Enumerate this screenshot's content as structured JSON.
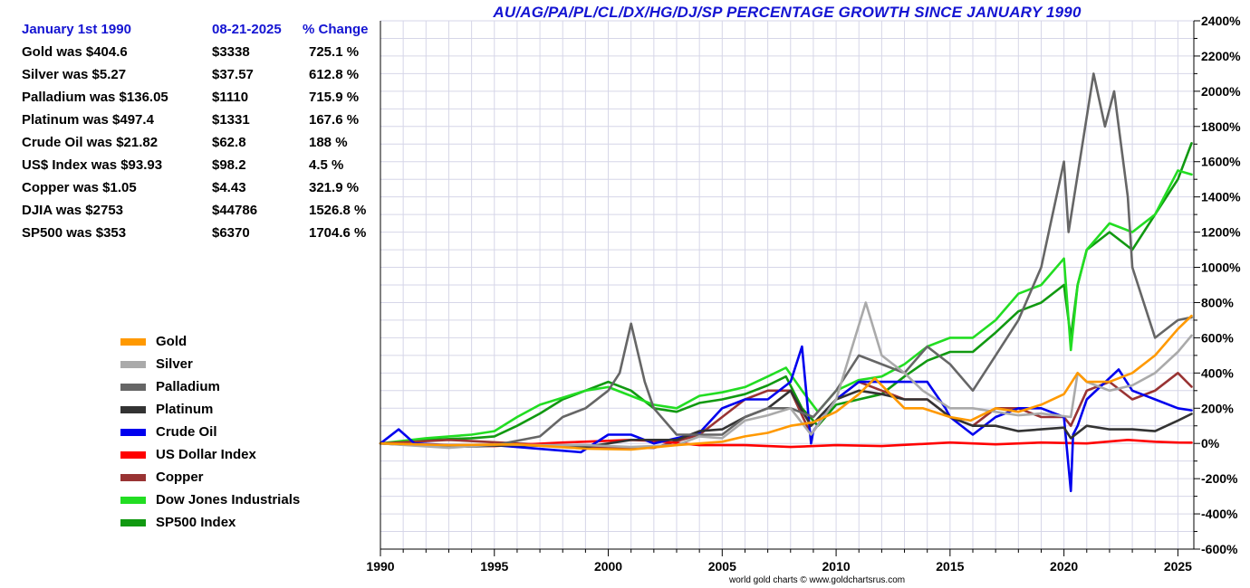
{
  "page": {
    "title": "AU/AG/PA/PL/CL/DX/HG/DJ/SP PERCENTAGE GROWTH SINCE JANUARY 1990",
    "credit": "world gold charts © www.goldchartsrus.com"
  },
  "table": {
    "headers": [
      "January 1st 1990",
      "08-21-2025",
      "% Change"
    ],
    "rows": [
      {
        "label": "Gold was $404.6",
        "price": "$3338",
        "change": "725.1 %"
      },
      {
        "label": "Silver was $5.27",
        "price": "$37.57",
        "change": "612.8 %"
      },
      {
        "label": "Palladium was $136.05",
        "price": "$1110",
        "change": "715.9 %"
      },
      {
        "label": "Platinum was $497.4",
        "price": "$1331",
        "change": "167.6 %"
      },
      {
        "label": "Crude Oil was $21.82",
        "price": "$62.8",
        "change": "188 %"
      },
      {
        "label": "US$ Index was $93.93",
        "price": "$98.2",
        "change": "4.5 %"
      },
      {
        "label": "Copper was $1.05",
        "price": "$4.43",
        "change": "321.9 %"
      },
      {
        "label": "DJIA was $2753",
        "price": "$44786",
        "change": "1526.8 %"
      },
      {
        "label": "SP500 was $353",
        "price": "$6370",
        "change": "1704.6 %"
      }
    ]
  },
  "chart_data": {
    "type": "line",
    "title": "AU/AG/PA/PL/CL/DX/HG/DJ/SP PERCENTAGE GROWTH SINCE JANUARY 1990",
    "xlim": [
      1990,
      2025.7
    ],
    "ylim": [
      -600,
      2400
    ],
    "x_ticks": [
      1990,
      1995,
      2000,
      2005,
      2010,
      2015,
      2020,
      2025
    ],
    "y_ticks": [
      -600,
      -400,
      -200,
      0,
      200,
      400,
      600,
      800,
      1000,
      1200,
      1400,
      1600,
      1800,
      2000,
      2200,
      2400
    ],
    "y_tick_labels": [
      "-600%",
      "-400%",
      "-200%",
      "0%",
      "200%",
      "400%",
      "600%",
      "800%",
      "1000%",
      "1200%",
      "1400%",
      "1600%",
      "1800%",
      "2000%",
      "2200%",
      "2400%"
    ],
    "grid": true,
    "legend_position": "left",
    "series": [
      {
        "name": "Gold",
        "color": "#ff9900",
        "x": [
          1990,
          1993,
          1996,
          1999,
          2001,
          2003,
          2005,
          2006,
          2007,
          2008,
          2009,
          2010,
          2011,
          2011.7,
          2013,
          2013.8,
          2015,
          2015.9,
          2017,
          2018,
          2019,
          2020,
          2020.6,
          2021,
          2022,
          2023,
          2024,
          2025,
          2025.6
        ],
        "y": [
          0,
          -10,
          -5,
          -30,
          -35,
          -10,
          10,
          40,
          60,
          100,
          120,
          180,
          280,
          370,
          200,
          200,
          150,
          130,
          200,
          180,
          220,
          280,
          400,
          350,
          350,
          400,
          500,
          650,
          725
        ]
      },
      {
        "name": "Silver",
        "color": "#aaaaaa",
        "x": [
          1990,
          1993,
          1995,
          1997,
          1999,
          2001,
          2003,
          2004,
          2005,
          2006,
          2007,
          2008,
          2008.9,
          2010,
          2011.3,
          2012,
          2013,
          2013.8,
          2015,
          2016,
          2018,
          2019,
          2020.3,
          2020.6,
          2021,
          2022,
          2023,
          2024,
          2025,
          2025.6
        ],
        "y": [
          0,
          -25,
          -5,
          -10,
          -10,
          -20,
          -10,
          40,
          30,
          130,
          160,
          200,
          50,
          250,
          800,
          500,
          400,
          300,
          200,
          200,
          160,
          170,
          150,
          400,
          350,
          300,
          330,
          400,
          520,
          613
        ]
      },
      {
        "name": "Palladium",
        "color": "#666666",
        "x": [
          1990,
          1993,
          1995,
          1997,
          1998,
          1999,
          2000,
          2000.5,
          2001,
          2001.6,
          2002,
          2003,
          2004,
          2005,
          2006,
          2007,
          2008,
          2009,
          2010,
          2011,
          2012,
          2013,
          2014,
          2015,
          2016,
          2017,
          2018,
          2019,
          2020,
          2020.2,
          2021.3,
          2021.8,
          2022.2,
          2022.8,
          2023,
          2024,
          2025,
          2025.6
        ],
        "y": [
          0,
          -20,
          -10,
          40,
          150,
          200,
          300,
          400,
          680,
          350,
          200,
          50,
          50,
          50,
          150,
          200,
          200,
          150,
          300,
          500,
          450,
          400,
          550,
          450,
          300,
          500,
          700,
          1000,
          1600,
          1200,
          2100,
          1800,
          2000,
          1400,
          1000,
          600,
          700,
          716
        ]
      },
      {
        "name": "Platinum",
        "color": "#333333",
        "x": [
          1990,
          1993,
          1996,
          1999,
          2001,
          2003,
          2004,
          2005,
          2006,
          2007,
          2008,
          2008.9,
          2010,
          2011,
          2012,
          2013,
          2014,
          2015,
          2016,
          2017,
          2018,
          2019,
          2020,
          2020.3,
          2021,
          2022,
          2023,
          2024,
          2025,
          2025.6
        ],
        "y": [
          0,
          -20,
          -10,
          -20,
          20,
          20,
          70,
          80,
          150,
          200,
          300,
          100,
          250,
          300,
          280,
          250,
          250,
          150,
          100,
          100,
          70,
          80,
          90,
          30,
          100,
          80,
          80,
          70,
          130,
          168
        ]
      },
      {
        "name": "Crude Oil",
        "color": "#0000ee",
        "x": [
          1990,
          1990.8,
          1991.5,
          1993,
          1995,
          1998.8,
          2000,
          2001,
          2002,
          2003,
          2004,
          2005,
          2006,
          2007,
          2008,
          2008.5,
          2008.9,
          2009,
          2010,
          2011,
          2012,
          2013,
          2014,
          2014.8,
          2015,
          2016,
          2017,
          2018,
          2019,
          2020,
          2020.3,
          2020.4,
          2020.6,
          2021,
          2022.4,
          2023,
          2024,
          2025,
          2025.6
        ],
        "y": [
          0,
          80,
          0,
          -10,
          -10,
          -50,
          50,
          50,
          0,
          30,
          60,
          200,
          250,
          250,
          350,
          550,
          0,
          70,
          250,
          350,
          350,
          350,
          350,
          200,
          150,
          50,
          150,
          200,
          200,
          150,
          -270,
          50,
          100,
          250,
          420,
          300,
          250,
          200,
          188
        ]
      },
      {
        "name": "US Dollar Index",
        "color": "#ff0000",
        "x": [
          1990,
          1992,
          1995,
          1998,
          2001,
          2002,
          2004,
          2006,
          2008,
          2010,
          2012,
          2015,
          2017,
          2019,
          2021,
          2022.8,
          2024,
          2025,
          2025.6
        ],
        "y": [
          0,
          -10,
          -15,
          5,
          20,
          15,
          -10,
          -10,
          -20,
          -10,
          -15,
          5,
          -5,
          5,
          0,
          20,
          10,
          5,
          4.5
        ]
      },
      {
        "name": "Copper",
        "color": "#993333",
        "x": [
          1990,
          1993,
          1996,
          1999,
          2002,
          2004,
          2005,
          2006,
          2007,
          2008,
          2008.9,
          2010,
          2011,
          2012,
          2013,
          2014,
          2015,
          2016,
          2017,
          2018,
          2019,
          2020,
          2020.3,
          2021,
          2022,
          2023,
          2024,
          2025,
          2025.6
        ],
        "y": [
          0,
          20,
          0,
          -20,
          -25,
          50,
          150,
          250,
          300,
          300,
          50,
          250,
          350,
          300,
          250,
          250,
          150,
          100,
          200,
          200,
          150,
          150,
          100,
          300,
          350,
          250,
          300,
          400,
          322
        ]
      },
      {
        "name": "Dow Jones Industrials",
        "color": "#22dd22",
        "x": [
          1990,
          1992,
          1994,
          1995,
          1996,
          1997,
          1998,
          1999,
          2000,
          2001,
          2002,
          2003,
          2004,
          2005,
          2006,
          2007,
          2007.8,
          2008.5,
          2009.2,
          2010,
          2011,
          2012,
          2013,
          2014,
          2015,
          2016,
          2017,
          2018,
          2019,
          2020,
          2020.3,
          2020.6,
          2021,
          2022,
          2023,
          2024,
          2025,
          2025.6
        ],
        "y": [
          0,
          30,
          50,
          70,
          150,
          220,
          260,
          300,
          320,
          270,
          220,
          200,
          270,
          290,
          320,
          380,
          430,
          300,
          180,
          300,
          360,
          380,
          450,
          550,
          600,
          600,
          700,
          850,
          900,
          1050,
          530,
          900,
          1100,
          1250,
          1200,
          1300,
          1550,
          1527
        ]
      },
      {
        "name": "SP500 Index",
        "color": "#119911",
        "x": [
          1990,
          1992,
          1994,
          1995,
          1996,
          1997,
          1998,
          1999,
          2000,
          2001,
          2002,
          2003,
          2004,
          2005,
          2006,
          2007,
          2007.8,
          2008.5,
          2009.2,
          2010,
          2011,
          2012,
          2013,
          2014,
          2015,
          2016,
          2017,
          2018,
          2019,
          2020,
          2020.3,
          2020.6,
          2021,
          2022,
          2023,
          2024,
          2025,
          2025.6
        ],
        "y": [
          0,
          20,
          30,
          40,
          100,
          170,
          250,
          300,
          350,
          300,
          200,
          180,
          230,
          250,
          280,
          330,
          380,
          200,
          100,
          220,
          250,
          280,
          380,
          470,
          520,
          520,
          630,
          750,
          800,
          900,
          600,
          900,
          1100,
          1200,
          1100,
          1300,
          1500,
          1705
        ]
      }
    ]
  }
}
